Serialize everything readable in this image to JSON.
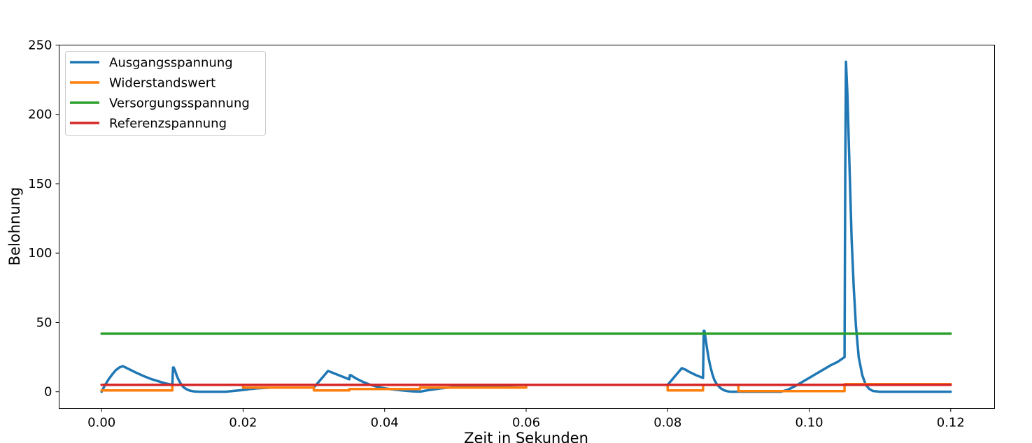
{
  "chart_data": {
    "type": "line",
    "xlabel": "Zeit in Sekunden",
    "ylabel": "Belohnung",
    "xlim": [
      -0.006,
      0.1262
    ],
    "ylim": [
      -12,
      250
    ],
    "xticks": [
      0.0,
      0.02,
      0.04,
      0.06,
      0.08,
      0.1,
      0.12
    ],
    "xtick_labels": [
      "0.00",
      "0.02",
      "0.04",
      "0.06",
      "0.08",
      "0.10",
      "0.12"
    ],
    "yticks": [
      0,
      50,
      100,
      150,
      200,
      250
    ],
    "ytick_labels": [
      "0",
      "50",
      "100",
      "150",
      "200",
      "250"
    ],
    "grid": false,
    "legend": "top-left",
    "series": [
      {
        "name": "Ausgangsspannung",
        "color": "#1f77b4",
        "x": [
          0.0,
          0.0005,
          0.001,
          0.0015,
          0.002,
          0.0025,
          0.003,
          0.004,
          0.005,
          0.006,
          0.007,
          0.008,
          0.009,
          0.01,
          0.0101,
          0.0102,
          0.0104,
          0.0106,
          0.0108,
          0.011,
          0.0113,
          0.0116,
          0.012,
          0.0125,
          0.013,
          0.0135,
          0.014,
          0.015,
          0.016,
          0.017,
          0.0175,
          0.018,
          0.019,
          0.02,
          0.021,
          0.022,
          0.024,
          0.026,
          0.028,
          0.03,
          0.0305,
          0.031,
          0.0315,
          0.032,
          0.033,
          0.034,
          0.035,
          0.0351,
          0.0352,
          0.036,
          0.037,
          0.038,
          0.039,
          0.04,
          0.041,
          0.042,
          0.043,
          0.044,
          0.045,
          0.046,
          0.048,
          0.05,
          0.055,
          0.06,
          0.065,
          0.07,
          0.075,
          0.08,
          0.0805,
          0.081,
          0.0815,
          0.082,
          0.0825,
          0.083,
          0.084,
          0.085,
          0.0851,
          0.0852,
          0.0854,
          0.0856,
          0.0858,
          0.086,
          0.0863,
          0.0866,
          0.087,
          0.0875,
          0.088,
          0.0885,
          0.089,
          0.0895,
          0.09,
          0.091,
          0.092,
          0.094,
          0.096,
          0.097,
          0.098,
          0.099,
          0.1,
          0.101,
          0.102,
          0.103,
          0.104,
          0.105,
          0.1051,
          0.1052,
          0.1054,
          0.1056,
          0.1058,
          0.106,
          0.1063,
          0.1066,
          0.107,
          0.1075,
          0.108,
          0.1085,
          0.109,
          0.11,
          0.112,
          0.115,
          0.12
        ],
        "y": [
          0,
          5,
          9,
          12.5,
          15.5,
          17.5,
          18.5,
          16,
          13.5,
          11.2,
          9.2,
          7.6,
          6.1,
          5,
          17.5,
          17.5,
          15,
          12,
          9.5,
          7.5,
          5,
          3.2,
          1.8,
          0.8,
          0.3,
          0.1,
          0,
          0,
          0,
          0,
          0,
          0.3,
          0.8,
          1.3,
          2,
          2.5,
          3,
          3,
          3,
          3,
          6,
          9,
          12,
          15,
          13,
          11,
          9,
          12,
          12,
          9.5,
          7,
          5,
          3.5,
          2.5,
          1.8,
          1.2,
          0.7,
          0.3,
          0.1,
          1,
          2.5,
          3.5,
          4.5,
          5,
          5,
          5,
          5,
          5,
          8,
          11,
          14,
          17,
          16,
          14.5,
          12,
          10,
          44,
          44,
          37,
          30,
          24,
          19,
          13,
          8.5,
          5,
          2.5,
          1,
          0.3,
          0,
          0,
          0,
          0,
          0,
          0,
          0,
          1.5,
          4,
          7,
          10,
          13,
          16,
          19,
          21.5,
          25,
          160,
          238,
          215,
          180,
          145,
          110,
          75,
          48,
          25,
          12,
          5,
          2,
          0.6,
          0,
          0,
          0,
          0
        ]
      },
      {
        "name": "Widerstandswert",
        "color": "#ff7f0e",
        "x": [
          0.0,
          0.01,
          0.01,
          0.02,
          0.02,
          0.03,
          0.03,
          0.035,
          0.035,
          0.045,
          0.045,
          0.06,
          0.06,
          0.08,
          0.08,
          0.085,
          0.085,
          0.09,
          0.09,
          0.105,
          0.105,
          0.12
        ],
        "y": [
          1,
          1,
          5,
          5,
          3,
          3,
          1,
          1,
          2,
          2,
          3,
          3,
          5,
          5,
          1,
          1,
          5,
          5,
          0.5,
          0.5,
          5.5,
          5.5
        ]
      },
      {
        "name": "Versorgungsspannung",
        "color": "#2ca02c",
        "x": [
          0.0,
          0.12
        ],
        "y": [
          42,
          42
        ]
      },
      {
        "name": "Referenzspannung",
        "color": "#d62728",
        "x": [
          0.0,
          0.12
        ],
        "y": [
          5,
          5
        ]
      }
    ]
  }
}
